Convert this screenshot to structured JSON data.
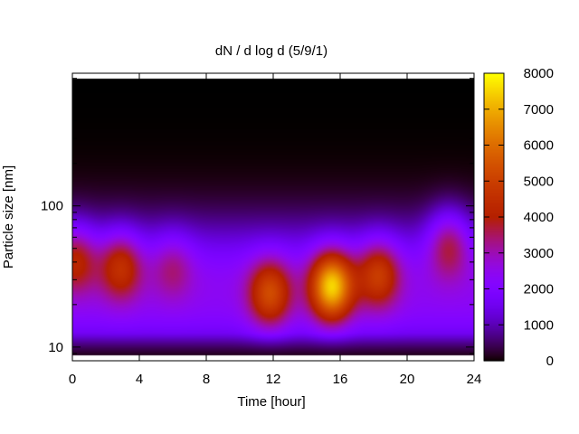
{
  "chart_data": {
    "type": "heatmap",
    "title": "dN / d log d (5/9/1)",
    "xlabel": "Time [hour]",
    "ylabel": "Particle size [nm]",
    "xlim": [
      0,
      24
    ],
    "x_ticks": [
      0,
      4,
      8,
      12,
      16,
      20,
      24
    ],
    "y_scale": "log",
    "ylim": [
      8,
      870
    ],
    "y_ticks": [
      10,
      100
    ],
    "colorbar": {
      "range": [
        0,
        8000
      ],
      "ticks": [
        0,
        1000,
        2000,
        3000,
        4000,
        5000,
        6000,
        7000,
        8000
      ],
      "colormap": "gnuplot-pm3d",
      "colors": [
        "#000000",
        "#7a00ff",
        "#e24200",
        "#ffeb00"
      ]
    },
    "grid": false,
    "features": [
      {
        "time_center": 0.2,
        "size_center_nm": 43,
        "peak": 4300
      },
      {
        "time_center": 2.9,
        "size_center_nm": 38,
        "peak": 4500
      },
      {
        "time_center": 6.0,
        "size_center_nm": 38,
        "peak": 3400
      },
      {
        "time_center": 11.8,
        "size_center_nm": 24,
        "peak": 5000
      },
      {
        "time_center": 15.5,
        "size_center_nm": 27,
        "peak": 7000
      },
      {
        "time_center": 18.3,
        "size_center_nm": 33,
        "peak": 4700
      },
      {
        "time_center": 22.5,
        "size_center_nm": 55,
        "peak": 4200
      }
    ]
  }
}
